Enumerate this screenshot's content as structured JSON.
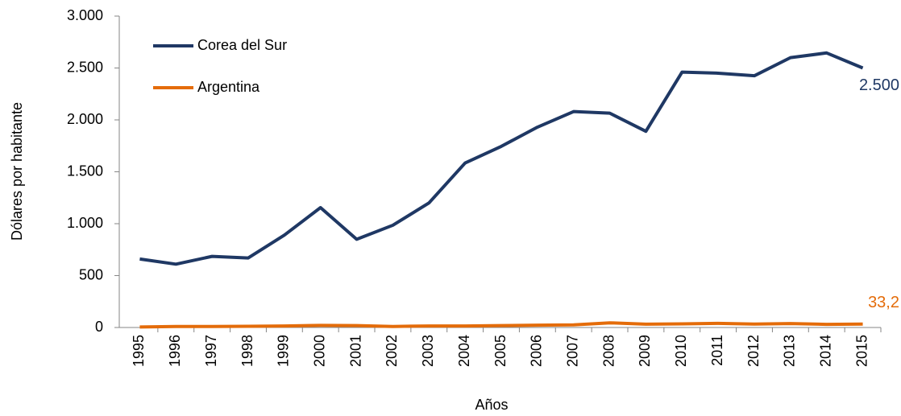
{
  "chart_data": {
    "type": "line",
    "y_label": "Dólares por habitante",
    "x_label": "Años",
    "categories": [
      "1995",
      "1996",
      "1997",
      "1998",
      "1999",
      "2000",
      "2001",
      "2002",
      "2003",
      "2004",
      "2005",
      "2006",
      "2007",
      "2008",
      "2009",
      "2010",
      "2011",
      "2012",
      "2013",
      "2014",
      "2015"
    ],
    "series": [
      {
        "name": "Corea del Sur",
        "color": "#1f3864",
        "values": [
          660,
          610,
          685,
          670,
          890,
          1155,
          850,
          985,
          1200,
          1585,
          1745,
          1930,
          2080,
          2065,
          1890,
          2460,
          2450,
          2425,
          2600,
          2645,
          2500
        ],
        "value_labels": [
          null,
          null,
          null,
          null,
          null,
          null,
          null,
          null,
          null,
          null,
          null,
          null,
          null,
          null,
          null,
          null,
          null,
          null,
          null,
          null,
          "2.500"
        ]
      },
      {
        "name": "Argentina",
        "color": "#e46c0a",
        "values": [
          5,
          10,
          10,
          12,
          15,
          20,
          18,
          10,
          15,
          15,
          18,
          22,
          25,
          45,
          32,
          35,
          40,
          33,
          38,
          30,
          33.2
        ],
        "value_labels": [
          null,
          null,
          null,
          null,
          null,
          null,
          null,
          null,
          null,
          null,
          null,
          null,
          null,
          null,
          null,
          null,
          null,
          null,
          null,
          null,
          "33,2"
        ]
      }
    ],
    "ylim": [
      0,
      3000
    ],
    "yticks": [
      0,
      500,
      {
        "value": 1000,
        "label": "1.000"
      },
      {
        "value": 1500,
        "label": "1.500"
      },
      {
        "value": 2000,
        "label": "2.000"
      },
      {
        "value": 2500,
        "label": "2.500"
      },
      {
        "value": 3000,
        "label": "3.000"
      }
    ],
    "grid": false,
    "legend": "upper left"
  }
}
